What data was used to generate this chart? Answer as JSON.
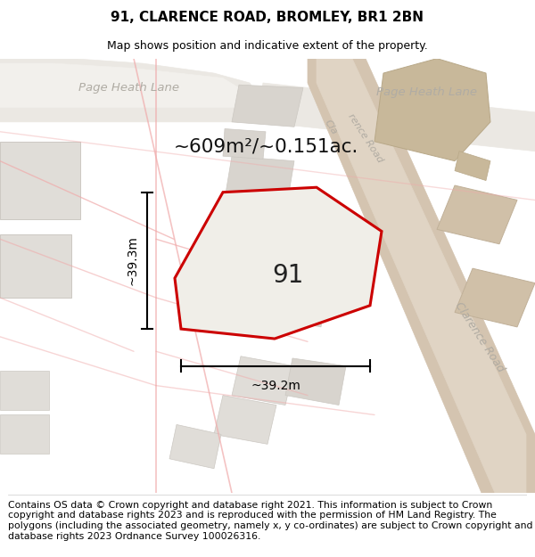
{
  "title": "91, CLARENCE ROAD, BROMLEY, BR1 2BN",
  "subtitle": "Map shows position and indicative extent of the property.",
  "area_text": "~609m²/~0.151ac.",
  "width_label": "~39.2m",
  "height_label": "~39.3m",
  "property_number": "91",
  "footer": "Contains OS data © Crown copyright and database right 2021. This information is subject to Crown copyright and database rights 2023 and is reproduced with the permission of HM Land Registry. The polygons (including the associated geometry, namely x, y co-ordinates) are subject to Crown copyright and database rights 2023 Ordnance Survey 100026316.",
  "map_bg": "#f7f6f4",
  "property_color": "#cc0000",
  "road_fill": "#e8e4dc",
  "road_tan": "#d4c4b0",
  "building_light": "#e0ddd8",
  "building_mid": "#d8d4ce",
  "building_tan": "#c8b8a0",
  "footer_fontsize": 7.8,
  "title_fontsize": 11,
  "subtitle_fontsize": 9,
  "label_color": "#b0aca4",
  "road_label_color": "#b0aba2",
  "pink_road": "#f0aaaa",
  "pink_road_alpha": 0.7
}
